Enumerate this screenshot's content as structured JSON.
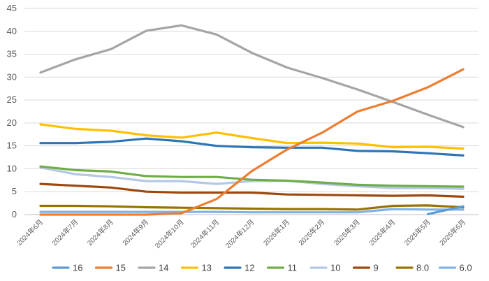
{
  "chart_data": {
    "type": "line",
    "title": "",
    "xlabel": "",
    "ylabel": "",
    "ylim": [
      0,
      45
    ],
    "yticks": [
      "0",
      "5",
      "10",
      "15",
      "20",
      "25",
      "30",
      "35",
      "40",
      "45"
    ],
    "grid": true,
    "legend_position": "bottom",
    "categories": [
      "2024年6月",
      "2024年7月",
      "2024年8月",
      "2024年9月",
      "2024年10月",
      "2024年11月",
      "2024年12月",
      "2025年1月",
      "2025年2月",
      "2025年3月",
      "2025年4月",
      "2025年5月",
      "2025年6月"
    ],
    "series": [
      {
        "name": "16",
        "color": "#5b9bd5",
        "values": [
          null,
          null,
          null,
          null,
          null,
          null,
          null,
          null,
          null,
          null,
          null,
          0.1,
          1.8
        ]
      },
      {
        "name": "15",
        "color": "#ed7d31",
        "values": [
          0,
          0,
          0,
          0,
          0.3,
          3.4,
          9.5,
          14.2,
          17.9,
          22.5,
          24.8,
          27.8,
          31.7
        ]
      },
      {
        "name": "14",
        "color": "#a5a5a5",
        "values": [
          31.0,
          33.9,
          36.1,
          40.1,
          41.3,
          39.3,
          35.3,
          32.1,
          29.8,
          27.3,
          24.6,
          21.8,
          19.1
        ]
      },
      {
        "name": "13",
        "color": "#ffc000",
        "values": [
          19.7,
          18.7,
          18.3,
          17.3,
          16.8,
          17.9,
          16.7,
          15.6,
          15.7,
          15.5,
          14.7,
          14.8,
          14.4
        ]
      },
      {
        "name": "12",
        "color": "#2e75b6",
        "values": [
          15.6,
          15.6,
          15.9,
          16.6,
          16.0,
          15.0,
          14.7,
          14.6,
          14.6,
          13.9,
          13.8,
          13.4,
          12.9
        ]
      },
      {
        "name": "11",
        "color": "#70ad47",
        "values": [
          10.5,
          9.7,
          9.4,
          8.4,
          8.2,
          8.2,
          7.6,
          7.4,
          7.0,
          6.5,
          6.3,
          6.2,
          6.1
        ]
      },
      {
        "name": "10",
        "color": "#b4c7e7",
        "values": [
          10.3,
          8.8,
          8.2,
          7.3,
          7.3,
          6.7,
          7.3,
          7.4,
          6.7,
          6.2,
          5.8,
          5.8,
          5.6
        ]
      },
      {
        "name": "9",
        "color": "#9e480e",
        "values": [
          6.7,
          6.3,
          5.9,
          5.0,
          4.8,
          4.8,
          4.8,
          4.4,
          4.3,
          4.2,
          4.1,
          4.2,
          3.9
        ]
      },
      {
        "name": "8.0",
        "color": "#997300",
        "values": [
          1.9,
          1.9,
          1.8,
          1.6,
          1.5,
          1.4,
          1.3,
          1.2,
          1.2,
          1.1,
          1.9,
          2.0,
          1.6
        ]
      },
      {
        "name": "6.0",
        "color": "#7fb2e5",
        "values": [
          0.6,
          0.6,
          0.6,
          0.6,
          0.6,
          0.6,
          0.5,
          0.5,
          0.5,
          0.5,
          1.2,
          1.1,
          1.1
        ]
      }
    ]
  }
}
